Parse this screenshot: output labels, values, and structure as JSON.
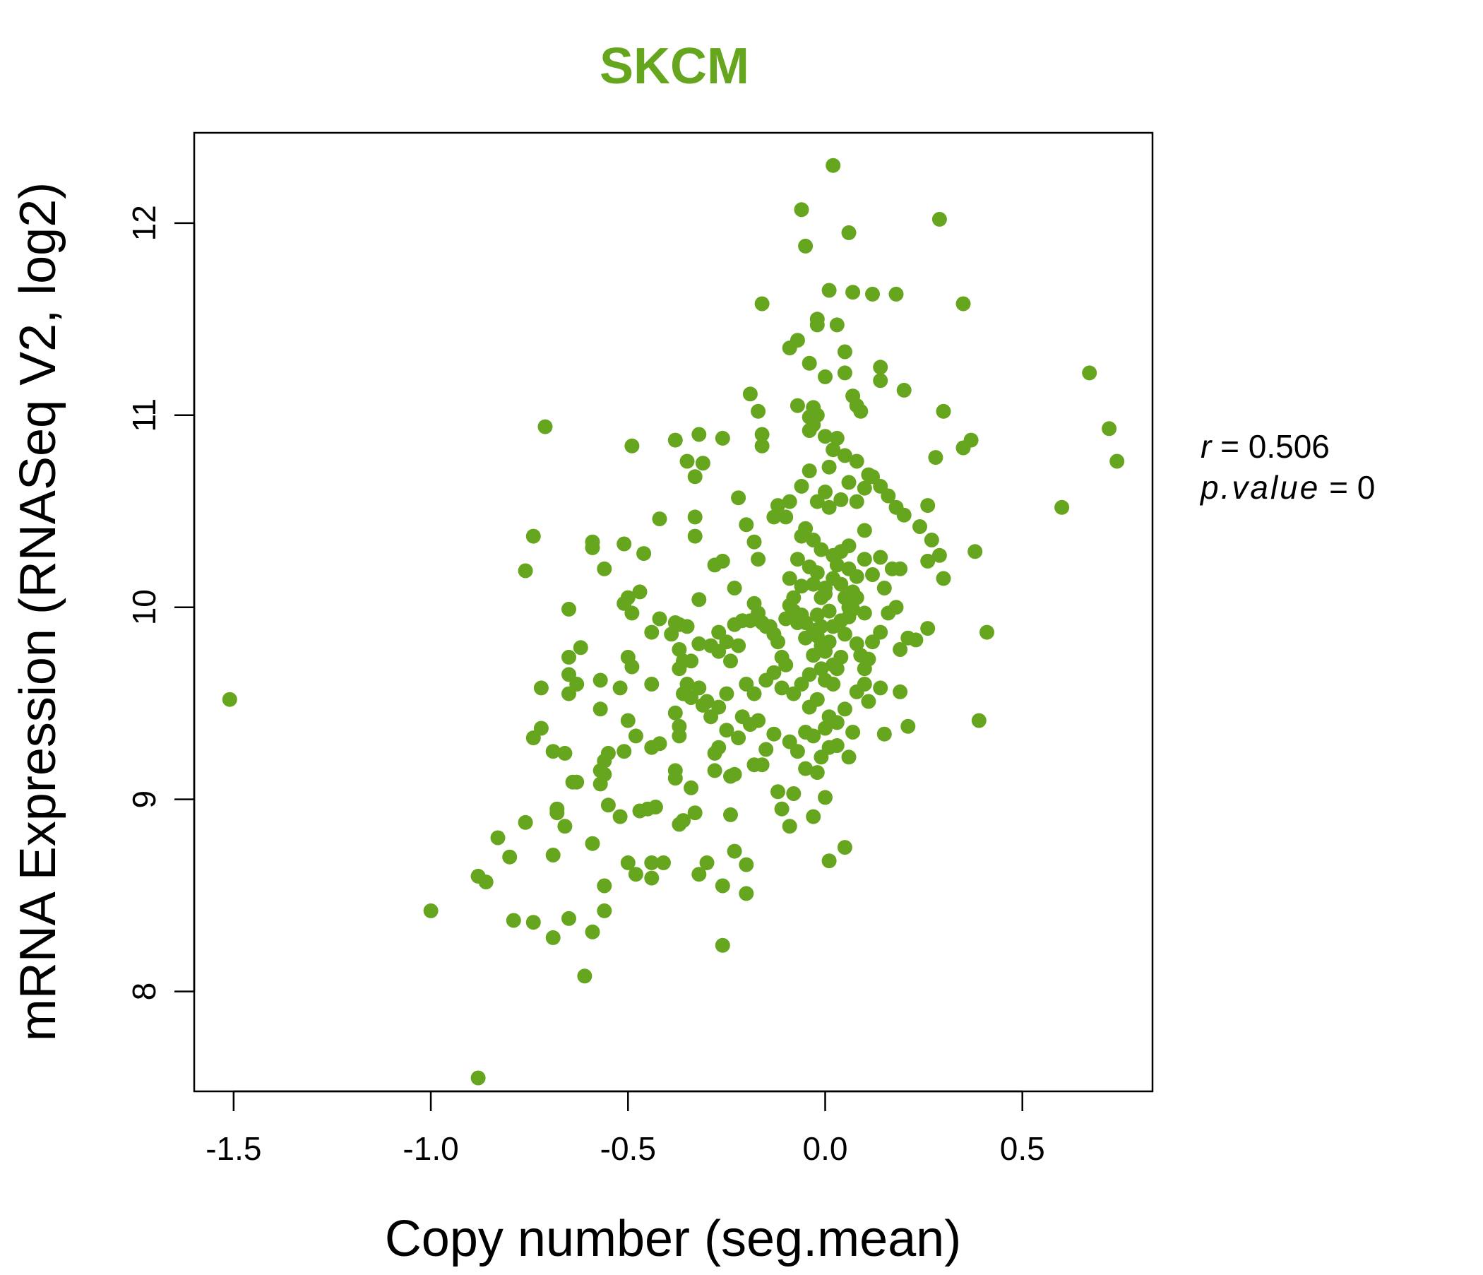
{
  "chart_data": {
    "type": "scatter",
    "title": "SKCM",
    "xlabel": "Copy number (seg.mean)",
    "ylabel": "mRNA Expression (RNASeq V2, log2)",
    "xlim": [
      -1.6,
      0.83
    ],
    "ylim": [
      7.48,
      12.47
    ],
    "xticks": [
      -1.5,
      -1.0,
      -0.5,
      0.0,
      0.5
    ],
    "xtick_labels": [
      "-1.5",
      "-1.0",
      "-0.5",
      "0.0",
      "0.5"
    ],
    "yticks": [
      8,
      9,
      10,
      11,
      12
    ],
    "ytick_labels": [
      "8",
      "9",
      "10",
      "11",
      "12"
    ],
    "color": "#66a61e",
    "stats": {
      "r_label": "r",
      "r_value": "0.506",
      "p_label": "p.value",
      "p_value": "0"
    },
    "points": [
      [
        -1.51,
        9.52
      ],
      [
        -0.88,
        7.55
      ],
      [
        -0.71,
        10.94
      ],
      [
        -0.49,
        10.84
      ],
      [
        -0.42,
        10.46
      ],
      [
        -1.0,
        8.42
      ],
      [
        -0.88,
        8.6
      ],
      [
        -0.86,
        8.57
      ],
      [
        -0.83,
        8.8
      ],
      [
        -0.8,
        8.7
      ],
      [
        -0.79,
        8.37
      ],
      [
        -0.76,
        8.88
      ],
      [
        -0.74,
        8.36
      ],
      [
        -0.69,
        8.28
      ],
      [
        -0.65,
        8.38
      ],
      [
        -0.61,
        8.08
      ],
      [
        -0.59,
        8.31
      ],
      [
        -0.56,
        8.42
      ],
      [
        -0.56,
        8.55
      ],
      [
        -0.69,
        8.71
      ],
      [
        -0.66,
        8.86
      ],
      [
        -0.68,
        8.93
      ],
      [
        -0.68,
        8.95
      ],
      [
        -0.63,
        9.09
      ],
      [
        -0.64,
        9.09
      ],
      [
        -0.59,
        8.77
      ],
      [
        -0.57,
        9.08
      ],
      [
        -0.56,
        9.13
      ],
      [
        -0.55,
        8.97
      ],
      [
        -0.52,
        8.91
      ],
      [
        -0.5,
        8.67
      ],
      [
        -0.48,
        8.61
      ],
      [
        -0.44,
        8.67
      ],
      [
        -0.41,
        8.67
      ],
      [
        -0.44,
        8.59
      ],
      [
        -0.47,
        8.94
      ],
      [
        -0.45,
        8.95
      ],
      [
        -0.43,
        8.96
      ],
      [
        -0.37,
        8.87
      ],
      [
        -0.36,
        8.89
      ],
      [
        -0.34,
        9.06
      ],
      [
        -0.33,
        8.93
      ],
      [
        -0.3,
        8.67
      ],
      [
        -0.32,
        8.61
      ],
      [
        -0.26,
        8.55
      ],
      [
        -0.26,
        8.24
      ],
      [
        -0.23,
        8.73
      ],
      [
        -0.2,
        8.51
      ],
      [
        -0.2,
        8.66
      ],
      [
        -0.24,
        8.92
      ],
      [
        -0.74,
        9.32
      ],
      [
        -0.72,
        9.37
      ],
      [
        -0.69,
        9.25
      ],
      [
        -0.66,
        9.24
      ],
      [
        -0.72,
        9.58
      ],
      [
        -0.65,
        9.55
      ],
      [
        -0.63,
        9.6
      ],
      [
        -0.65,
        9.65
      ],
      [
        -0.62,
        9.79
      ],
      [
        -0.65,
        9.74
      ],
      [
        -0.57,
        9.47
      ],
      [
        -0.57,
        9.62
      ],
      [
        -0.55,
        9.24
      ],
      [
        -0.56,
        9.2
      ],
      [
        -0.57,
        9.15
      ],
      [
        -0.51,
        9.25
      ],
      [
        -0.5,
        9.41
      ],
      [
        -0.48,
        9.33
      ],
      [
        -0.52,
        9.58
      ],
      [
        -0.49,
        9.69
      ],
      [
        -0.5,
        9.74
      ],
      [
        -0.44,
        9.27
      ],
      [
        -0.42,
        9.29
      ],
      [
        -0.44,
        9.6
      ],
      [
        -0.38,
        9.45
      ],
      [
        -0.37,
        9.33
      ],
      [
        -0.37,
        9.38
      ],
      [
        -0.38,
        9.11
      ],
      [
        -0.38,
        9.15
      ],
      [
        -0.36,
        9.55
      ],
      [
        -0.37,
        9.68
      ],
      [
        -0.35,
        9.6
      ],
      [
        -0.34,
        9.53
      ],
      [
        -0.31,
        9.49
      ],
      [
        -0.32,
        9.58
      ],
      [
        -0.3,
        9.51
      ],
      [
        -0.28,
        9.15
      ],
      [
        -0.28,
        9.24
      ],
      [
        -0.27,
        9.27
      ],
      [
        -0.24,
        9.12
      ],
      [
        -0.23,
        9.13
      ],
      [
        -0.25,
        9.36
      ],
      [
        -0.22,
        9.32
      ],
      [
        -0.21,
        9.43
      ],
      [
        -0.19,
        9.39
      ],
      [
        -0.17,
        9.41
      ],
      [
        -0.16,
        9.18
      ],
      [
        -0.18,
        9.18
      ],
      [
        -0.15,
        9.26
      ],
      [
        -0.13,
        9.34
      ],
      [
        -0.12,
        9.04
      ],
      [
        -0.11,
        8.95
      ],
      [
        -0.09,
        8.86
      ],
      [
        -0.08,
        9.03
      ],
      [
        -0.05,
        9.16
      ],
      [
        -0.02,
        9.14
      ],
      [
        -0.01,
        9.22
      ],
      [
        0.01,
        9.27
      ],
      [
        0.03,
        9.28
      ],
      [
        0.06,
        9.22
      ],
      [
        -0.03,
        8.91
      ],
      [
        0.0,
        9.01
      ],
      [
        0.01,
        8.68
      ],
      [
        0.05,
        8.75
      ],
      [
        0.07,
        9.35
      ],
      [
        0.15,
        9.34
      ],
      [
        0.21,
        9.38
      ],
      [
        0.39,
        9.41
      ],
      [
        0.14,
        9.58
      ],
      [
        0.19,
        9.56
      ],
      [
        -0.76,
        10.19
      ],
      [
        -0.74,
        10.37
      ],
      [
        -0.65,
        9.99
      ],
      [
        -0.59,
        10.31
      ],
      [
        -0.59,
        10.34
      ],
      [
        -0.56,
        10.2
      ],
      [
        -0.51,
        10.33
      ],
      [
        -0.51,
        10.02
      ],
      [
        -0.5,
        10.05
      ],
      [
        -0.49,
        9.97
      ],
      [
        -0.47,
        10.08
      ],
      [
        -0.46,
        10.28
      ],
      [
        -0.44,
        9.87
      ],
      [
        -0.42,
        9.94
      ],
      [
        -0.38,
        9.92
      ],
      [
        -0.37,
        9.91
      ],
      [
        -0.35,
        9.9
      ],
      [
        -0.39,
        9.86
      ],
      [
        -0.37,
        9.78
      ],
      [
        -0.36,
        9.72
      ],
      [
        -0.34,
        9.72
      ],
      [
        -0.32,
        9.81
      ],
      [
        -0.32,
        10.04
      ],
      [
        -0.29,
        9.8
      ],
      [
        -0.27,
        9.77
      ],
      [
        -0.27,
        9.87
      ],
      [
        -0.25,
        9.82
      ],
      [
        -0.24,
        9.72
      ],
      [
        -0.22,
        9.8
      ],
      [
        -0.23,
        9.91
      ],
      [
        -0.21,
        9.93
      ],
      [
        -0.19,
        9.93
      ],
      [
        -0.18,
        10.02
      ],
      [
        -0.17,
        9.97
      ],
      [
        -0.16,
        9.92
      ],
      [
        -0.15,
        9.9
      ],
      [
        -0.13,
        9.86
      ],
      [
        -0.12,
        9.82
      ],
      [
        -0.11,
        9.74
      ],
      [
        -0.1,
        9.7
      ],
      [
        -0.09,
        10.01
      ],
      [
        -0.08,
        9.98
      ],
      [
        -0.06,
        9.96
      ],
      [
        -0.05,
        9.92
      ],
      [
        -0.03,
        9.88
      ],
      [
        -0.02,
        9.85
      ],
      [
        -0.01,
        9.8
      ],
      [
        0.0,
        9.77
      ],
      [
        0.01,
        9.82
      ],
      [
        0.02,
        9.7
      ],
      [
        0.03,
        9.68
      ],
      [
        0.04,
        9.74
      ],
      [
        0.05,
        9.86
      ],
      [
        0.06,
        9.95
      ],
      [
        0.07,
        9.99
      ],
      [
        0.08,
        9.81
      ],
      [
        0.09,
        9.75
      ],
      [
        0.1,
        9.68
      ],
      [
        0.11,
        9.73
      ],
      [
        0.12,
        9.82
      ],
      [
        0.14,
        9.87
      ],
      [
        0.15,
        10.1
      ],
      [
        0.16,
        9.97
      ],
      [
        0.18,
        10.0
      ],
      [
        0.19,
        9.78
      ],
      [
        0.21,
        9.84
      ],
      [
        0.23,
        9.83
      ],
      [
        0.26,
        9.89
      ],
      [
        0.41,
        9.87
      ],
      [
        -0.01,
        10.05
      ],
      [
        -0.03,
        10.12
      ],
      [
        -0.02,
        10.18
      ],
      [
        0.0,
        10.07
      ],
      [
        0.02,
        10.15
      ],
      [
        0.03,
        10.22
      ],
      [
        0.05,
        10.05
      ],
      [
        0.07,
        10.08
      ],
      [
        0.08,
        10.16
      ],
      [
        0.1,
        10.25
      ],
      [
        0.12,
        10.17
      ],
      [
        0.14,
        10.26
      ],
      [
        0.17,
        10.2
      ],
      [
        0.19,
        10.2
      ],
      [
        0.24,
        10.42
      ],
      [
        0.27,
        10.35
      ],
      [
        0.29,
        10.27
      ],
      [
        0.3,
        10.15
      ],
      [
        0.38,
        10.29
      ],
      [
        0.26,
        10.24
      ],
      [
        -0.33,
        10.47
      ],
      [
        -0.33,
        10.37
      ],
      [
        -0.28,
        10.22
      ],
      [
        -0.26,
        10.24
      ],
      [
        -0.23,
        10.1
      ],
      [
        -0.22,
        10.57
      ],
      [
        -0.2,
        10.43
      ],
      [
        -0.18,
        10.34
      ],
      [
        -0.17,
        10.25
      ],
      [
        -0.13,
        10.47
      ],
      [
        -0.12,
        10.53
      ],
      [
        -0.1,
        10.47
      ],
      [
        -0.09,
        10.55
      ],
      [
        -0.06,
        10.63
      ],
      [
        -0.06,
        10.37
      ],
      [
        -0.05,
        10.41
      ],
      [
        -0.03,
        10.35
      ],
      [
        -0.02,
        10.55
      ],
      [
        0.0,
        10.6
      ],
      [
        0.01,
        10.52
      ],
      [
        0.04,
        10.56
      ],
      [
        0.06,
        10.65
      ],
      [
        0.08,
        10.55
      ],
      [
        0.1,
        10.62
      ],
      [
        0.12,
        10.68
      ],
      [
        0.14,
        10.63
      ],
      [
        0.16,
        10.58
      ],
      [
        0.18,
        10.52
      ],
      [
        0.2,
        10.48
      ],
      [
        0.26,
        10.53
      ],
      [
        0.6,
        10.52
      ],
      [
        -0.35,
        10.76
      ],
      [
        -0.33,
        10.68
      ],
      [
        -0.31,
        10.75
      ],
      [
        -0.38,
        10.87
      ],
      [
        -0.32,
        10.9
      ],
      [
        -0.26,
        10.88
      ],
      [
        -0.16,
        10.84
      ],
      [
        -0.16,
        10.9
      ],
      [
        -0.04,
        10.92
      ],
      [
        -0.03,
        10.95
      ],
      [
        0.0,
        10.89
      ],
      [
        0.02,
        10.82
      ],
      [
        0.03,
        10.88
      ],
      [
        0.05,
        10.79
      ],
      [
        -0.04,
        10.71
      ],
      [
        0.01,
        10.73
      ],
      [
        0.08,
        10.76
      ],
      [
        0.11,
        10.69
      ],
      [
        0.28,
        10.78
      ],
      [
        0.35,
        10.83
      ],
      [
        0.37,
        10.87
      ],
      [
        0.72,
        10.93
      ],
      [
        0.74,
        10.76
      ],
      [
        -0.19,
        11.11
      ],
      [
        -0.17,
        11.02
      ],
      [
        -0.07,
        11.05
      ],
      [
        -0.04,
        10.99
      ],
      [
        -0.03,
        11.04
      ],
      [
        -0.02,
        11.0
      ],
      [
        0.07,
        11.1
      ],
      [
        0.08,
        11.05
      ],
      [
        0.09,
        11.02
      ],
      [
        0.14,
        11.25
      ],
      [
        0.14,
        11.18
      ],
      [
        0.2,
        11.13
      ],
      [
        0.3,
        11.02
      ],
      [
        0.67,
        11.22
      ],
      [
        -0.09,
        11.35
      ],
      [
        -0.07,
        11.39
      ],
      [
        -0.04,
        11.27
      ],
      [
        -0.02,
        11.5
      ],
      [
        -0.02,
        11.47
      ],
      [
        0.0,
        11.2
      ],
      [
        0.03,
        11.47
      ],
      [
        0.05,
        11.22
      ],
      [
        0.05,
        11.33
      ],
      [
        -0.16,
        11.58
      ],
      [
        0.01,
        11.65
      ],
      [
        0.07,
        11.64
      ],
      [
        0.12,
        11.63
      ],
      [
        0.18,
        11.63
      ],
      [
        0.35,
        11.58
      ],
      [
        -0.06,
        12.07
      ],
      [
        -0.05,
        11.88
      ],
      [
        0.02,
        12.3
      ],
      [
        0.06,
        11.95
      ],
      [
        0.29,
        12.02
      ],
      [
        -0.06,
        10.11
      ],
      [
        -0.08,
        10.05
      ],
      [
        -0.1,
        9.94
      ],
      [
        -0.14,
        9.9
      ],
      [
        -0.07,
        9.92
      ],
      [
        -0.05,
        9.84
      ],
      [
        -0.03,
        9.75
      ],
      [
        -0.01,
        9.68
      ],
      [
        0.0,
        9.62
      ],
      [
        0.02,
        9.6
      ],
      [
        -0.04,
        9.65
      ],
      [
        -0.06,
        9.6
      ],
      [
        -0.08,
        9.55
      ],
      [
        -0.11,
        9.58
      ],
      [
        -0.13,
        9.66
      ],
      [
        -0.15,
        9.62
      ],
      [
        -0.18,
        9.55
      ],
      [
        -0.2,
        9.6
      ],
      [
        -0.25,
        9.55
      ],
      [
        -0.27,
        9.48
      ],
      [
        -0.29,
        9.43
      ],
      [
        -0.04,
        9.48
      ],
      [
        -0.02,
        9.52
      ],
      [
        0.01,
        9.43
      ],
      [
        0.03,
        9.4
      ],
      [
        0.05,
        9.47
      ],
      [
        0.08,
        9.56
      ],
      [
        0.1,
        9.6
      ],
      [
        0.11,
        9.51
      ],
      [
        -0.09,
        9.3
      ],
      [
        -0.07,
        9.25
      ],
      [
        -0.05,
        9.35
      ],
      [
        -0.03,
        9.33
      ],
      [
        0.0,
        9.37
      ],
      [
        0.02,
        9.9
      ],
      [
        0.04,
        9.93
      ],
      [
        0.06,
        10.0
      ],
      [
        0.08,
        10.05
      ],
      [
        0.1,
        9.97
      ],
      [
        0.04,
        10.12
      ],
      [
        0.06,
        10.2
      ],
      [
        -0.01,
        9.9
      ],
      [
        -0.02,
        9.96
      ],
      [
        0.01,
        9.98
      ],
      [
        0.0,
        10.1
      ],
      [
        -0.01,
        10.3
      ],
      [
        0.02,
        10.27
      ],
      [
        0.04,
        10.29
      ],
      [
        0.06,
        10.32
      ],
      [
        -0.04,
        10.21
      ],
      [
        -0.07,
        10.25
      ],
      [
        -0.09,
        10.15
      ],
      [
        0.1,
        10.4
      ]
    ]
  }
}
